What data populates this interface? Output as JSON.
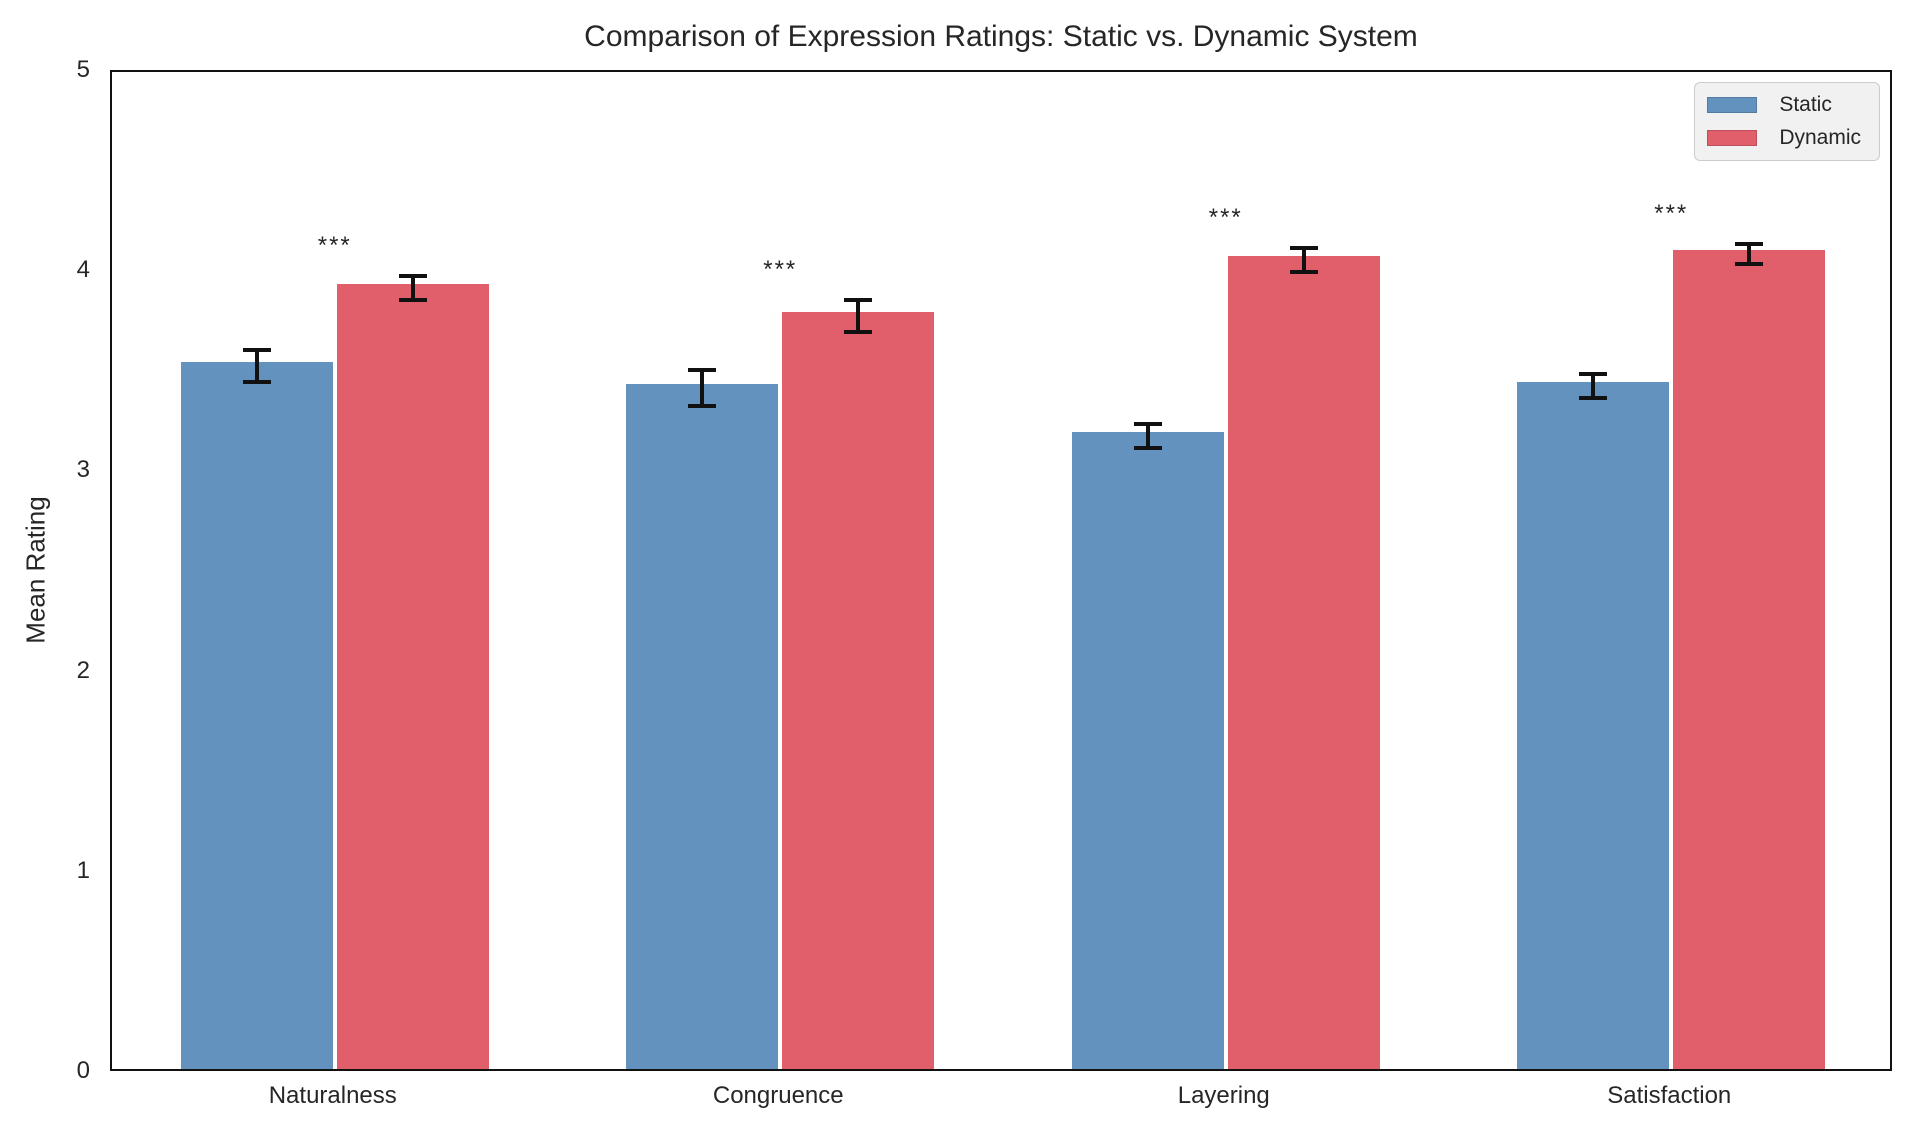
{
  "chart_data": {
    "type": "bar",
    "title": "Comparison of Expression Ratings: Static vs. Dynamic System",
    "xlabel": "",
    "ylabel": "Mean Rating",
    "ylim": [
      0,
      5
    ],
    "yticks": [
      0,
      1,
      2,
      3,
      4,
      5
    ],
    "grid": false,
    "legend_position": "upper right",
    "categories": [
      "Naturalness",
      "Congruence",
      "Layering",
      "Satisfaction"
    ],
    "series": [
      {
        "name": "Static",
        "color": "#6292bd",
        "values": [
          3.53,
          3.42,
          3.18,
          3.43
        ],
        "errors": [
          0.08,
          0.09,
          0.06,
          0.06
        ]
      },
      {
        "name": "Dynamic",
        "color": "#e05f6a",
        "values": [
          3.92,
          3.78,
          4.06,
          4.09
        ],
        "errors": [
          0.06,
          0.08,
          0.06,
          0.05
        ]
      }
    ],
    "significance": [
      "***",
      "***",
      "***",
      "***"
    ],
    "error_bar_color": "#111111",
    "axis_color": "#111111"
  }
}
